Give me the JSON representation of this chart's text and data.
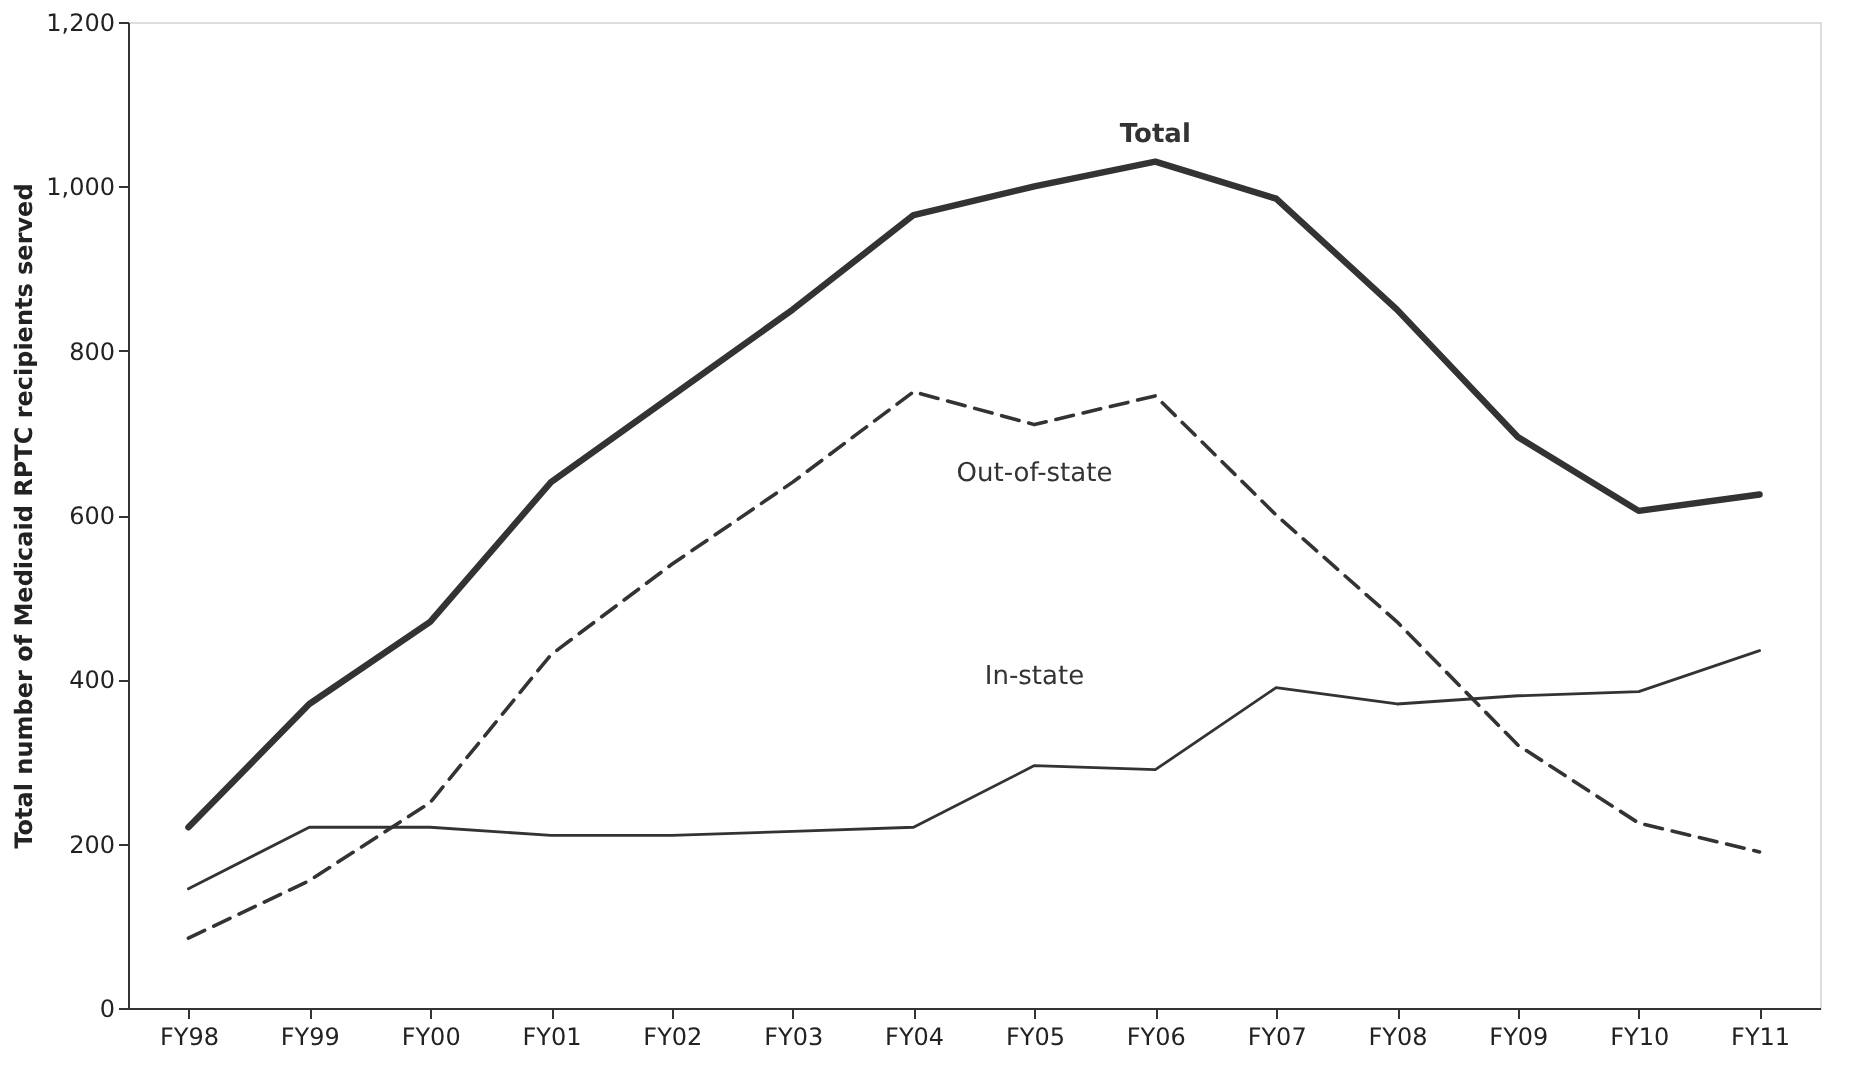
{
  "chart_data": {
    "type": "line",
    "ylabel": "Total number of Medicaid RPTC recipients served",
    "categories": [
      "FY98",
      "FY99",
      "FY00",
      "FY01",
      "FY02",
      "FY03",
      "FY04",
      "FY05",
      "FY06",
      "FY07",
      "FY08",
      "FY09",
      "FY10",
      "FY11"
    ],
    "series": [
      {
        "name": "Total",
        "color": "#333333",
        "line_style": "solid",
        "values": [
          220,
          370,
          470,
          640,
          745,
          850,
          965,
          1000,
          1030,
          985,
          850,
          695,
          605,
          625
        ]
      },
      {
        "name": "Out-of-state",
        "color": "#333333",
        "line_style": "dashed",
        "values": [
          85,
          155,
          250,
          430,
          540,
          640,
          750,
          710,
          745,
          600,
          470,
          320,
          225,
          190
        ]
      },
      {
        "name": "In-state",
        "color": "#333333",
        "line_style": "solid",
        "values": [
          145,
          220,
          220,
          210,
          210,
          215,
          220,
          295,
          290,
          390,
          370,
          380,
          385,
          435
        ]
      }
    ],
    "ylim": [
      0,
      1200
    ],
    "yticks": [
      0,
      200,
      400,
      600,
      800,
      {
        "value": 1000,
        "label": "1,000"
      },
      {
        "value": 1200,
        "label": "1,200"
      }
    ],
    "grid": false,
    "legend": false,
    "marker": "none"
  }
}
